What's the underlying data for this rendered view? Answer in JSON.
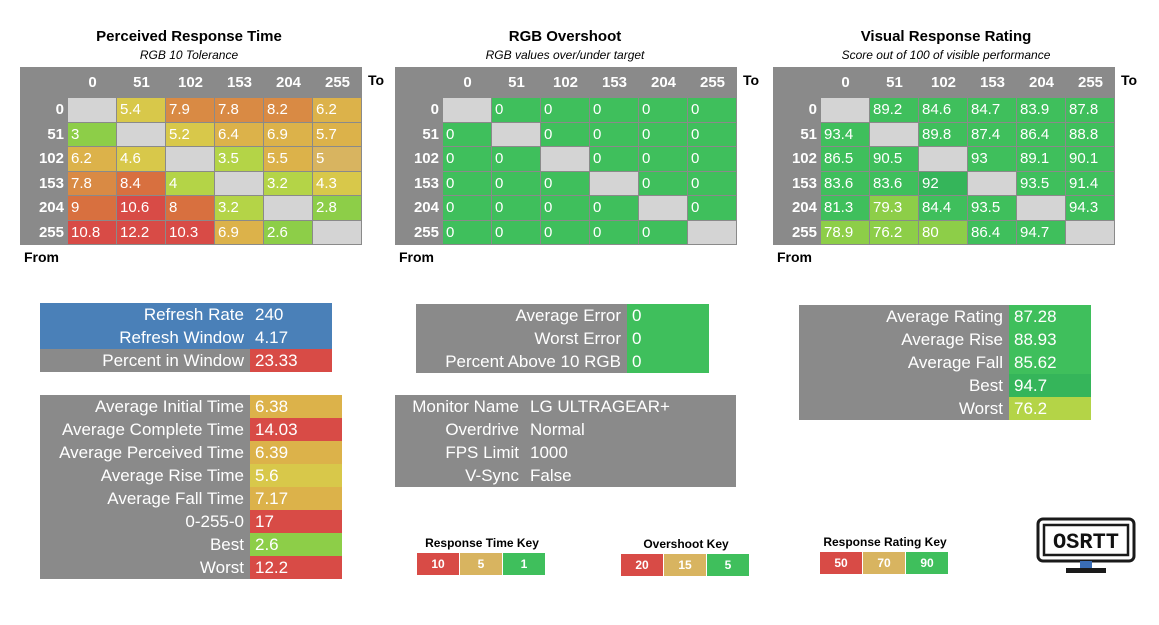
{
  "colors": {
    "gray": "#8a8a8a",
    "diag": "#d4d4d4",
    "green_dark": "#35b55a",
    "green": "#3fbf5c",
    "green_light": "#8dce48",
    "yellow_green": "#b4d447",
    "yellow": "#d8c84a",
    "orange_yellow": "#dcb24a",
    "orange": "#d98a44",
    "red_orange": "#d8703f",
    "red": "#d84b46",
    "blue": "#4a80b8",
    "tan": "#d8b460"
  },
  "panels": [
    {
      "title": "Perceived Response Time",
      "subtitle": "RGB 10 Tolerance",
      "to_label": "To",
      "from_label": "From",
      "col_headers": [
        "0",
        "51",
        "102",
        "153",
        "204",
        "255"
      ],
      "row_headers": [
        "0",
        "51",
        "102",
        "153",
        "204",
        "255"
      ],
      "rows": [
        [
          [
            "",
            "diag"
          ],
          [
            "5.4",
            "yellow"
          ],
          [
            "7.9",
            "orange"
          ],
          [
            "7.8",
            "orange"
          ],
          [
            "8.2",
            "orange"
          ],
          [
            "6.2",
            "orange_yellow"
          ]
        ],
        [
          [
            "3",
            "green_light"
          ],
          [
            "",
            "diag"
          ],
          [
            "5.2",
            "yellow"
          ],
          [
            "6.4",
            "orange_yellow"
          ],
          [
            "6.9",
            "orange_yellow"
          ],
          [
            "5.7",
            "orange_yellow"
          ]
        ],
        [
          [
            "6.2",
            "orange_yellow"
          ],
          [
            "4.6",
            "yellow"
          ],
          [
            "",
            "diag"
          ],
          [
            "3.5",
            "yellow_green"
          ],
          [
            "5.5",
            "orange_yellow"
          ],
          [
            "5",
            "tan"
          ]
        ],
        [
          [
            "7.8",
            "orange"
          ],
          [
            "8.4",
            "red_orange"
          ],
          [
            "4",
            "yellow_green"
          ],
          [
            "",
            "diag"
          ],
          [
            "3.2",
            "yellow_green"
          ],
          [
            "4.3",
            "yellow"
          ]
        ],
        [
          [
            "9",
            "red_orange"
          ],
          [
            "10.6",
            "red"
          ],
          [
            "8",
            "red_orange"
          ],
          [
            "3.2",
            "yellow_green"
          ],
          [
            "",
            "diag"
          ],
          [
            "2.8",
            "green_light"
          ]
        ],
        [
          [
            "10.8",
            "red"
          ],
          [
            "12.2",
            "red"
          ],
          [
            "10.3",
            "red"
          ],
          [
            "6.9",
            "orange_yellow"
          ],
          [
            "2.6",
            "green_light"
          ],
          [
            "",
            "diag"
          ]
        ]
      ]
    },
    {
      "title": "RGB Overshoot",
      "subtitle": "RGB values over/under target",
      "to_label": "To",
      "from_label": "From",
      "col_headers": [
        "0",
        "51",
        "102",
        "153",
        "204",
        "255"
      ],
      "row_headers": [
        "0",
        "51",
        "102",
        "153",
        "204",
        "255"
      ],
      "rows": [
        [
          [
            "",
            "diag"
          ],
          [
            "0",
            "green"
          ],
          [
            "0",
            "green"
          ],
          [
            "0",
            "green"
          ],
          [
            "0",
            "green"
          ],
          [
            "0",
            "green"
          ]
        ],
        [
          [
            "0",
            "green"
          ],
          [
            "",
            "diag"
          ],
          [
            "0",
            "green"
          ],
          [
            "0",
            "green"
          ],
          [
            "0",
            "green"
          ],
          [
            "0",
            "green"
          ]
        ],
        [
          [
            "0",
            "green"
          ],
          [
            "0",
            "green"
          ],
          [
            "",
            "diag"
          ],
          [
            "0",
            "green"
          ],
          [
            "0",
            "green"
          ],
          [
            "0",
            "green"
          ]
        ],
        [
          [
            "0",
            "green"
          ],
          [
            "0",
            "green"
          ],
          [
            "0",
            "green"
          ],
          [
            "",
            "diag"
          ],
          [
            "0",
            "green"
          ],
          [
            "0",
            "green"
          ]
        ],
        [
          [
            "0",
            "green"
          ],
          [
            "0",
            "green"
          ],
          [
            "0",
            "green"
          ],
          [
            "0",
            "green"
          ],
          [
            "",
            "diag"
          ],
          [
            "0",
            "green"
          ]
        ],
        [
          [
            "0",
            "green"
          ],
          [
            "0",
            "green"
          ],
          [
            "0",
            "green"
          ],
          [
            "0",
            "green"
          ],
          [
            "0",
            "green"
          ],
          [
            "",
            "diag"
          ]
        ]
      ]
    },
    {
      "title": "Visual Response Rating",
      "subtitle": "Score out of 100 of visible performance",
      "to_label": "To",
      "from_label": "From",
      "col_headers": [
        "0",
        "51",
        "102",
        "153",
        "204",
        "255"
      ],
      "row_headers": [
        "0",
        "51",
        "102",
        "153",
        "204",
        "255"
      ],
      "rows": [
        [
          [
            "",
            "diag"
          ],
          [
            "89.2",
            "green"
          ],
          [
            "84.6",
            "green"
          ],
          [
            "84.7",
            "green"
          ],
          [
            "83.9",
            "green"
          ],
          [
            "87.8",
            "green"
          ]
        ],
        [
          [
            "93.4",
            "green"
          ],
          [
            "",
            "diag"
          ],
          [
            "89.8",
            "green"
          ],
          [
            "87.4",
            "green"
          ],
          [
            "86.4",
            "green"
          ],
          [
            "88.8",
            "green"
          ]
        ],
        [
          [
            "86.5",
            "green"
          ],
          [
            "90.5",
            "green"
          ],
          [
            "",
            "diag"
          ],
          [
            "93",
            "green"
          ],
          [
            "89.1",
            "green"
          ],
          [
            "90.1",
            "green"
          ]
        ],
        [
          [
            "83.6",
            "green"
          ],
          [
            "83.6",
            "green"
          ],
          [
            "92",
            "green_dark"
          ],
          [
            "",
            "diag"
          ],
          [
            "93.5",
            "green"
          ],
          [
            "91.4",
            "green"
          ]
        ],
        [
          [
            "81.3",
            "green"
          ],
          [
            "79.3",
            "green_light"
          ],
          [
            "84.4",
            "green"
          ],
          [
            "93.5",
            "green"
          ],
          [
            "",
            "diag"
          ],
          [
            "94.3",
            "green"
          ]
        ],
        [
          [
            "78.9",
            "green_light"
          ],
          [
            "76.2",
            "green_light"
          ],
          [
            "80",
            "green_light"
          ],
          [
            "86.4",
            "green"
          ],
          [
            "94.7",
            "green"
          ],
          [
            "",
            "diag"
          ]
        ]
      ]
    }
  ],
  "refresh_table": [
    {
      "label": "Refresh Rate",
      "value": "240",
      "label_color": "blue",
      "value_color": "blue"
    },
    {
      "label": "Refresh Window",
      "value": "4.17",
      "label_color": "blue",
      "value_color": "blue"
    },
    {
      "label": "Percent in Window",
      "value": "23.33",
      "label_color": "gray",
      "value_color": "red"
    }
  ],
  "timing_table": [
    {
      "label": "Average Initial Time",
      "value": "6.38",
      "value_color": "orange_yellow"
    },
    {
      "label": "Average Complete Time",
      "value": "14.03",
      "value_color": "red"
    },
    {
      "label": "Average Perceived Time",
      "value": "6.39",
      "value_color": "orange_yellow"
    },
    {
      "label": "Average Rise Time",
      "value": "5.6",
      "value_color": "yellow"
    },
    {
      "label": "Average Fall Time",
      "value": "7.17",
      "value_color": "orange_yellow"
    },
    {
      "label": "0-255-0",
      "value": "17",
      "value_color": "red"
    },
    {
      "label": "Best",
      "value": "2.6",
      "value_color": "green_light"
    },
    {
      "label": "Worst",
      "value": "12.2",
      "value_color": "red"
    }
  ],
  "error_table": [
    {
      "label": "Average Error",
      "value": "0",
      "value_color": "green"
    },
    {
      "label": "Worst Error",
      "value": "0",
      "value_color": "green"
    },
    {
      "label": "Percent Above 10 RGB",
      "value": "0",
      "value_color": "green"
    }
  ],
  "monitor_table": [
    {
      "label": "Monitor Name",
      "value": "LG ULTRAGEAR+"
    },
    {
      "label": "Overdrive",
      "value": "Normal"
    },
    {
      "label": "FPS Limit",
      "value": "1000"
    },
    {
      "label": "V-Sync",
      "value": "False"
    }
  ],
  "rating_table": [
    {
      "label": "Average Rating",
      "value": "87.28",
      "value_color": "green"
    },
    {
      "label": "Average Rise",
      "value": "88.93",
      "value_color": "green"
    },
    {
      "label": "Average Fall",
      "value": "85.62",
      "value_color": "green"
    },
    {
      "label": "Best",
      "value": "94.7",
      "value_color": "green_dark"
    },
    {
      "label": "Worst",
      "value": "76.2",
      "value_color": "yellow_green"
    }
  ],
  "keys": [
    {
      "title": "Response Time Key",
      "cells": [
        [
          "10",
          "red"
        ],
        [
          "5",
          "tan"
        ],
        [
          "1",
          "green"
        ]
      ]
    },
    {
      "title": "Overshoot Key",
      "cells": [
        [
          "20",
          "red"
        ],
        [
          "15",
          "tan"
        ],
        [
          "5",
          "green"
        ]
      ]
    },
    {
      "title": "Response Rating Key",
      "cells": [
        [
          "50",
          "red"
        ],
        [
          "70",
          "tan"
        ],
        [
          "90",
          "green"
        ]
      ]
    }
  ],
  "logo": {
    "text": "OSRTT"
  }
}
